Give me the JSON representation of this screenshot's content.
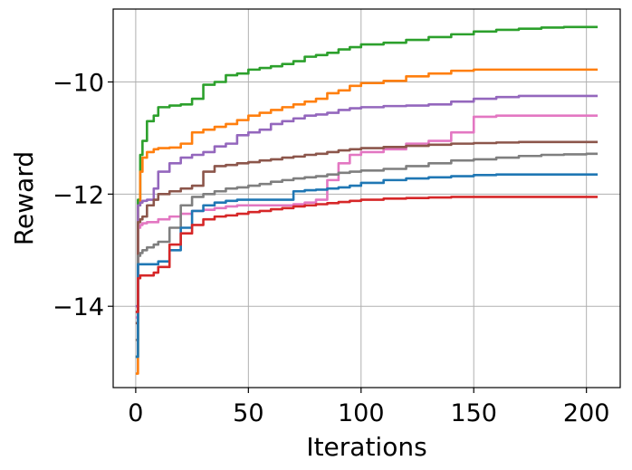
{
  "chart_data": {
    "type": "line",
    "xlabel": "Iterations",
    "ylabel": "Reward",
    "xlim": [
      -10,
      215
    ],
    "ylim": [
      -15.45,
      -8.7
    ],
    "xticks": [
      0,
      50,
      100,
      150,
      200
    ],
    "xtick_labels": [
      "0",
      "50",
      "100",
      "150",
      "200"
    ],
    "yticks": [
      -14,
      -12,
      -10
    ],
    "ytick_labels": [
      "−14",
      "−12",
      "−10"
    ],
    "grid": true,
    "legend": "none",
    "series": [
      {
        "color": "#2ca02c",
        "x": [
          0,
          1,
          2,
          3,
          5,
          8,
          10,
          15,
          20,
          25,
          30,
          35,
          40,
          45,
          50,
          55,
          60,
          65,
          70,
          75,
          80,
          85,
          90,
          95,
          100,
          110,
          120,
          130,
          140,
          150,
          160,
          170,
          180,
          190,
          200,
          205
        ],
        "y": [
          -14.9,
          -12.1,
          -11.3,
          -11.05,
          -10.7,
          -10.6,
          -10.45,
          -10.42,
          -10.4,
          -10.3,
          -10.05,
          -10.0,
          -9.88,
          -9.85,
          -9.78,
          -9.75,
          -9.72,
          -9.68,
          -9.63,
          -9.55,
          -9.52,
          -9.48,
          -9.42,
          -9.38,
          -9.33,
          -9.3,
          -9.25,
          -9.2,
          -9.15,
          -9.1,
          -9.07,
          -9.05,
          -9.03,
          -9.02,
          -9.02,
          -9.02
        ]
      },
      {
        "color": "#ff7f0e",
        "x": [
          0,
          1,
          2,
          3,
          5,
          8,
          10,
          15,
          20,
          25,
          30,
          35,
          40,
          45,
          50,
          55,
          60,
          65,
          70,
          75,
          80,
          85,
          90,
          95,
          100,
          110,
          120,
          130,
          140,
          150,
          160,
          170,
          180,
          190,
          200,
          205
        ],
        "y": [
          -15.2,
          -12.2,
          -11.6,
          -11.35,
          -11.25,
          -11.2,
          -11.18,
          -11.17,
          -11.1,
          -10.9,
          -10.85,
          -10.8,
          -10.75,
          -10.68,
          -10.6,
          -10.55,
          -10.5,
          -10.45,
          -10.4,
          -10.35,
          -10.3,
          -10.2,
          -10.15,
          -10.07,
          -10.02,
          -9.98,
          -9.9,
          -9.85,
          -9.8,
          -9.78,
          -9.78,
          -9.78,
          -9.78,
          -9.78,
          -9.78,
          -9.78
        ]
      },
      {
        "color": "#9467bd",
        "x": [
          0,
          1,
          2,
          3,
          5,
          8,
          10,
          15,
          20,
          25,
          30,
          35,
          40,
          45,
          50,
          55,
          60,
          65,
          70,
          75,
          80,
          85,
          90,
          95,
          100,
          110,
          120,
          130,
          140,
          150,
          160,
          170,
          180,
          190,
          200,
          205
        ],
        "y": [
          -14.0,
          -12.2,
          -12.15,
          -12.12,
          -12.1,
          -11.9,
          -11.6,
          -11.45,
          -11.35,
          -11.3,
          -11.25,
          -11.15,
          -11.1,
          -10.95,
          -10.9,
          -10.85,
          -10.75,
          -10.7,
          -10.65,
          -10.6,
          -10.58,
          -10.55,
          -10.5,
          -10.47,
          -10.45,
          -10.43,
          -10.42,
          -10.4,
          -10.35,
          -10.3,
          -10.27,
          -10.25,
          -10.25,
          -10.25,
          -10.25,
          -10.25
        ]
      },
      {
        "color": "#e377c2",
        "x": [
          0,
          1,
          2,
          3,
          5,
          8,
          10,
          15,
          20,
          25,
          30,
          35,
          40,
          45,
          50,
          55,
          60,
          65,
          70,
          75,
          80,
          85,
          90,
          95,
          100,
          110,
          120,
          130,
          140,
          150,
          160,
          170,
          180,
          190,
          200,
          205
        ],
        "y": [
          -14.2,
          -12.6,
          -12.55,
          -12.52,
          -12.5,
          -12.5,
          -12.45,
          -12.4,
          -12.35,
          -12.3,
          -12.28,
          -12.25,
          -12.22,
          -12.2,
          -12.2,
          -12.2,
          -12.2,
          -12.2,
          -12.18,
          -12.15,
          -12.1,
          -11.75,
          -11.45,
          -11.3,
          -11.25,
          -11.2,
          -11.1,
          -11.05,
          -10.9,
          -10.62,
          -10.6,
          -10.6,
          -10.6,
          -10.6,
          -10.6,
          -10.6
        ]
      },
      {
        "color": "#8c564b",
        "x": [
          0,
          1,
          2,
          3,
          5,
          8,
          10,
          15,
          20,
          25,
          30,
          35,
          40,
          45,
          50,
          55,
          60,
          65,
          70,
          75,
          80,
          85,
          90,
          95,
          100,
          110,
          120,
          130,
          140,
          150,
          160,
          170,
          180,
          190,
          200,
          205
        ],
        "y": [
          -14.3,
          -12.5,
          -12.45,
          -12.4,
          -12.2,
          -12.1,
          -12.0,
          -11.95,
          -11.9,
          -11.85,
          -11.6,
          -11.5,
          -11.48,
          -11.45,
          -11.43,
          -11.4,
          -11.38,
          -11.35,
          -11.33,
          -11.3,
          -11.28,
          -11.25,
          -11.22,
          -11.2,
          -11.18,
          -11.16,
          -11.14,
          -11.12,
          -11.1,
          -11.09,
          -11.08,
          -11.07,
          -11.07,
          -11.07,
          -11.07,
          -11.07
        ]
      },
      {
        "color": "#7f7f7f",
        "x": [
          0,
          1,
          2,
          3,
          5,
          8,
          10,
          15,
          20,
          25,
          30,
          35,
          40,
          45,
          50,
          55,
          60,
          65,
          70,
          75,
          80,
          85,
          90,
          95,
          100,
          110,
          120,
          130,
          140,
          150,
          160,
          170,
          180,
          190,
          200,
          205
        ],
        "y": [
          -14.6,
          -13.1,
          -13.05,
          -13.0,
          -12.95,
          -12.9,
          -12.85,
          -12.6,
          -12.2,
          -12.05,
          -12.0,
          -11.95,
          -11.9,
          -11.88,
          -11.85,
          -11.82,
          -11.78,
          -11.75,
          -11.72,
          -11.7,
          -11.68,
          -11.65,
          -11.62,
          -11.6,
          -11.58,
          -11.55,
          -11.5,
          -11.45,
          -11.4,
          -11.38,
          -11.35,
          -11.32,
          -11.3,
          -11.29,
          -11.28,
          -11.28
        ]
      },
      {
        "color": "#1f77b4",
        "x": [
          0,
          1,
          2,
          3,
          5,
          8,
          10,
          15,
          20,
          25,
          30,
          35,
          40,
          45,
          50,
          55,
          60,
          65,
          70,
          75,
          80,
          85,
          90,
          95,
          100,
          110,
          120,
          130,
          140,
          150,
          160,
          170,
          180,
          190,
          200,
          205
        ],
        "y": [
          -14.9,
          -13.25,
          -13.25,
          -13.25,
          -13.25,
          -13.25,
          -13.2,
          -13.0,
          -12.6,
          -12.3,
          -12.2,
          -12.15,
          -12.12,
          -12.1,
          -12.1,
          -12.1,
          -12.1,
          -12.1,
          -11.95,
          -11.93,
          -11.92,
          -11.9,
          -11.88,
          -11.85,
          -11.8,
          -11.75,
          -11.72,
          -11.7,
          -11.68,
          -11.66,
          -11.65,
          -11.65,
          -11.65,
          -11.65,
          -11.65,
          -11.65
        ]
      },
      {
        "color": "#d62728",
        "x": [
          0,
          1,
          2,
          3,
          5,
          8,
          10,
          15,
          20,
          25,
          30,
          35,
          40,
          45,
          50,
          55,
          60,
          65,
          70,
          75,
          80,
          85,
          90,
          95,
          100,
          110,
          120,
          130,
          140,
          150,
          160,
          170,
          180,
          190,
          200,
          205
        ],
        "y": [
          -14.1,
          -13.5,
          -13.45,
          -13.45,
          -13.45,
          -13.4,
          -13.3,
          -12.9,
          -12.7,
          -12.55,
          -12.45,
          -12.4,
          -12.38,
          -12.35,
          -12.32,
          -12.3,
          -12.27,
          -12.25,
          -12.22,
          -12.2,
          -12.18,
          -12.16,
          -12.14,
          -12.12,
          -12.1,
          -12.08,
          -12.07,
          -12.06,
          -12.05,
          -12.05,
          -12.05,
          -12.05,
          -12.05,
          -12.05,
          -12.05,
          -12.05
        ]
      }
    ]
  }
}
